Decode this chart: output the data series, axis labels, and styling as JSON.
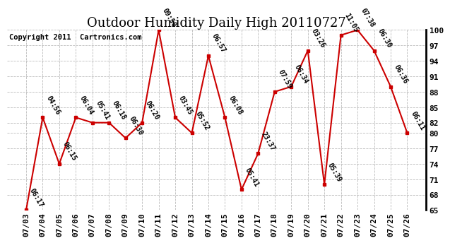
{
  "title": "Outdoor Humidity Daily High 20110727",
  "copyright": "Copyright 2011  Cartronics.com",
  "x_labels": [
    "07/03",
    "07/04",
    "07/05",
    "07/06",
    "07/07",
    "07/08",
    "07/09",
    "07/10",
    "07/11",
    "07/12",
    "07/13",
    "07/14",
    "07/15",
    "07/16",
    "07/17",
    "07/18",
    "07/19",
    "07/20",
    "07/21",
    "07/22",
    "07/23",
    "07/24",
    "07/25",
    "07/26"
  ],
  "y_values": [
    65,
    83,
    74,
    83,
    82,
    82,
    79,
    82,
    100,
    83,
    80,
    95,
    83,
    69,
    76,
    88,
    89,
    96,
    70,
    99,
    100,
    96,
    89,
    80
  ],
  "annotations": [
    "06:17",
    "04:56",
    "06:15",
    "06:04",
    "05:41",
    "06:18",
    "06:30",
    "06:20",
    "09:50",
    "03:45",
    "05:52",
    "06:57",
    "06:08",
    "05:41",
    "23:37",
    "07:59",
    "06:34",
    "03:26",
    "05:39",
    "11:05",
    "07:38",
    "06:30",
    "06:36",
    "06:11"
  ],
  "line_color": "#cc0000",
  "marker_color": "#cc0000",
  "background_color": "#ffffff",
  "grid_color": "#bbbbbb",
  "ylim": [
    65,
    100
  ],
  "yticks": [
    65,
    68,
    71,
    74,
    77,
    80,
    82,
    85,
    88,
    91,
    94,
    97,
    100
  ],
  "title_fontsize": 13,
  "annot_fontsize": 7,
  "copyright_fontsize": 7.5,
  "tick_fontsize": 8
}
